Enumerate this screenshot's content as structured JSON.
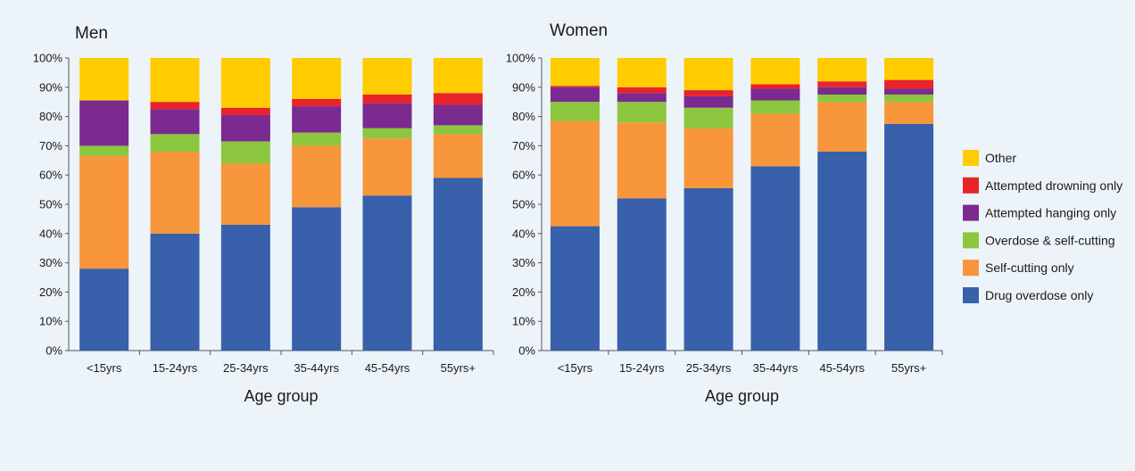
{
  "chart_data": [
    {
      "type": "bar",
      "stacked": true,
      "title": "Men",
      "xlabel": "Age group",
      "ylabel": "",
      "ylim": [
        0,
        100
      ],
      "y_ticks": [
        "0%",
        "10%",
        "20%",
        "30%",
        "40%",
        "50%",
        "60%",
        "70%",
        "80%",
        "90%",
        "100%"
      ],
      "categories": [
        "<15yrs",
        "15-24yrs",
        "25-34yrs",
        "35-44yrs",
        "45-54yrs",
        "55yrs+"
      ],
      "series": [
        {
          "name": "Drug overdose only",
          "values": [
            28,
            40,
            43,
            49,
            53,
            59
          ]
        },
        {
          "name": "Self-cutting only",
          "values": [
            38.5,
            28,
            21,
            21,
            19.5,
            15
          ]
        },
        {
          "name": "Overdose & self-cutting",
          "values": [
            3.5,
            6,
            7.5,
            4.5,
            3.5,
            3
          ]
        },
        {
          "name": "Attempted hanging only",
          "values": [
            15.5,
            8.5,
            9,
            9,
            8.5,
            7
          ]
        },
        {
          "name": "Attempted drowning only",
          "values": [
            0,
            2.5,
            2.5,
            2.5,
            3,
            4
          ]
        },
        {
          "name": "Other",
          "values": [
            14.5,
            15,
            17,
            14,
            12.5,
            12
          ]
        }
      ]
    },
    {
      "type": "bar",
      "stacked": true,
      "title": "Women",
      "xlabel": "Age group",
      "ylabel": "",
      "ylim": [
        0,
        100
      ],
      "y_ticks": [
        "0%",
        "10%",
        "20%",
        "30%",
        "40%",
        "50%",
        "60%",
        "70%",
        "80%",
        "90%",
        "100%"
      ],
      "categories": [
        "<15yrs",
        "15-24yrs",
        "25-34yrs",
        "35-44yrs",
        "45-54yrs",
        "55yrs+"
      ],
      "series": [
        {
          "name": "Drug overdose only",
          "values": [
            42.5,
            52,
            55.5,
            63,
            68,
            77.5
          ]
        },
        {
          "name": "Self-cutting only",
          "values": [
            36,
            26,
            20.5,
            18,
            17,
            7.5
          ]
        },
        {
          "name": "Overdose & self-cutting",
          "values": [
            6.5,
            7,
            7,
            4.5,
            2.5,
            2.5
          ]
        },
        {
          "name": "Attempted hanging only",
          "values": [
            5,
            3,
            4,
            4,
            2.5,
            2
          ]
        },
        {
          "name": "Attempted drowning only",
          "values": [
            0.5,
            2,
            2,
            1.5,
            2,
            3
          ]
        },
        {
          "name": "Other",
          "values": [
            9.5,
            10,
            11,
            9,
            8,
            7.5
          ]
        }
      ]
    }
  ],
  "legend": {
    "placement": "right",
    "items": [
      {
        "label": "Other",
        "color": "#ffcc00"
      },
      {
        "label": "Attempted drowning only",
        "color": "#e8232a"
      },
      {
        "label": "Attempted hanging only",
        "color": "#7b2a8f"
      },
      {
        "label": "Overdose & self-cutting",
        "color": "#8cc63f"
      },
      {
        "label": "Self-cutting only",
        "color": "#f7963a"
      },
      {
        "label": "Drug overdose only",
        "color": "#3860ab"
      }
    ]
  },
  "colors": {
    "Drug overdose only": "#3860ab",
    "Self-cutting only": "#f7963a",
    "Overdose & self-cutting": "#8cc63f",
    "Attempted hanging only": "#7b2a8f",
    "Attempted drowning only": "#e8232a",
    "Other": "#ffcc00",
    "background": "#ecf4fa",
    "axis": "#555555"
  }
}
